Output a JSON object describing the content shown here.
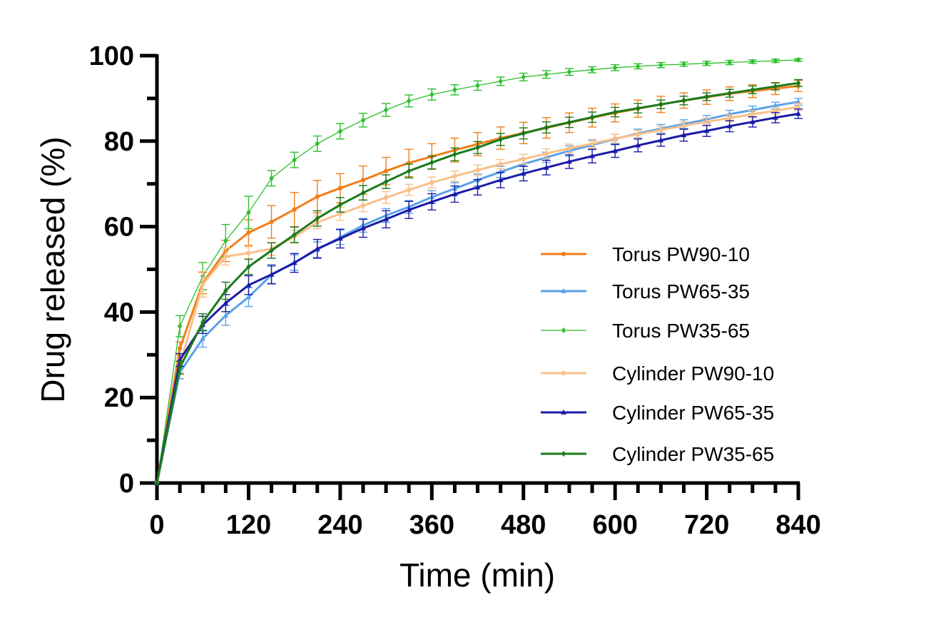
{
  "chart_data": {
    "type": "line",
    "title": "",
    "xlabel": "Time (min)",
    "ylabel": "Drug released (%)",
    "xlim": [
      0,
      840
    ],
    "ylim": [
      0,
      100
    ],
    "xticks": [
      0,
      120,
      240,
      360,
      480,
      600,
      720,
      840
    ],
    "yticks": [
      0,
      20,
      40,
      60,
      80,
      100
    ],
    "grid": false,
    "legend_position": "bottom-right",
    "x": [
      0,
      30,
      60,
      90,
      120,
      150,
      180,
      210,
      240,
      270,
      300,
      330,
      360,
      390,
      420,
      450,
      480,
      510,
      540,
      570,
      600,
      630,
      660,
      690,
      720,
      750,
      780,
      810,
      840
    ],
    "series": [
      {
        "name": "Torus PW90-10",
        "color": "#f07f1a",
        "marker": "circle",
        "line_width": 3,
        "values": [
          0,
          31.5,
          46.8,
          54.3,
          58.6,
          61.1,
          64.0,
          67.0,
          69.0,
          70.9,
          73.0,
          74.9,
          76.4,
          77.9,
          79.3,
          80.7,
          81.9,
          83.1,
          84.3,
          85.5,
          86.6,
          87.6,
          88.6,
          89.5,
          90.3,
          91.1,
          91.7,
          92.3,
          92.9
        ],
        "errors": [
          0,
          1.5,
          2.5,
          2.5,
          3.0,
          3.8,
          4.0,
          3.8,
          3.4,
          3.3,
          3.2,
          3.2,
          3.0,
          2.8,
          2.7,
          2.6,
          2.5,
          2.4,
          2.3,
          2.2,
          2.1,
          2.0,
          1.9,
          1.8,
          1.7,
          1.6,
          1.5,
          1.4,
          1.3
        ]
      },
      {
        "name": "Torus PW65-35",
        "color": "#5aa2ea",
        "marker": "triangle",
        "line_width": 3,
        "values": [
          0,
          25.9,
          33.8,
          39.2,
          43.5,
          48.7,
          51.6,
          54.6,
          57.5,
          60.3,
          62.6,
          64.6,
          66.9,
          68.9,
          70.9,
          72.8,
          74.6,
          76.2,
          77.7,
          79.1,
          80.5,
          81.8,
          82.9,
          84.0,
          85.1,
          86.3,
          87.3,
          88.3,
          89.2
        ],
        "errors": [
          0,
          1.5,
          2.0,
          2.3,
          2.2,
          2.0,
          1.8,
          1.8,
          1.7,
          1.6,
          1.6,
          1.5,
          1.5,
          1.4,
          1.4,
          1.3,
          1.3,
          1.2,
          1.2,
          1.1,
          1.1,
          1.0,
          1.0,
          1.0,
          0.9,
          0.9,
          0.9,
          0.8,
          0.8
        ]
      },
      {
        "name": "Torus PW35-65",
        "color": "#2dbf2d",
        "marker": "diamond",
        "line_width": 1.3,
        "values": [
          0,
          36.7,
          48.4,
          56.7,
          63.3,
          71.3,
          75.6,
          79.4,
          82.3,
          84.9,
          87.3,
          89.4,
          90.9,
          92.0,
          93.0,
          94.0,
          95.0,
          95.6,
          96.2,
          96.7,
          97.2,
          97.5,
          97.8,
          98.0,
          98.2,
          98.4,
          98.6,
          98.8,
          99.0
        ],
        "errors": [
          0,
          2.5,
          3.2,
          3.8,
          3.8,
          1.8,
          1.8,
          1.8,
          1.8,
          1.6,
          1.5,
          1.4,
          1.3,
          1.2,
          1.1,
          1.0,
          0.9,
          0.9,
          0.8,
          0.7,
          0.7,
          0.6,
          0.6,
          0.5,
          0.5,
          0.5,
          0.4,
          0.4,
          0.3
        ]
      },
      {
        "name": "Cylinder PW90-10",
        "color": "#f9c089",
        "marker": "circle",
        "line_width": 3,
        "values": [
          0,
          27.5,
          46.5,
          53.0,
          53.8,
          54.8,
          57.6,
          61.0,
          63.0,
          64.9,
          66.8,
          68.6,
          70.3,
          71.8,
          73.2,
          74.6,
          75.8,
          77.1,
          78.3,
          79.4,
          80.6,
          81.6,
          82.6,
          83.6,
          84.5,
          85.4,
          86.3,
          87.1,
          88.0
        ],
        "errors": [
          0,
          1.5,
          3.0,
          2.0,
          1.5,
          1.5,
          1.5,
          1.5,
          1.5,
          1.4,
          1.4,
          1.3,
          1.3,
          1.2,
          1.2,
          1.1,
          1.1,
          1.1,
          1.0,
          1.0,
          1.0,
          0.9,
          0.9,
          0.9,
          0.9,
          0.8,
          0.8,
          0.8,
          0.8
        ]
      },
      {
        "name": "Cylinder PW65-35",
        "color": "#1a1aa8",
        "marker": "triangle",
        "line_width": 3,
        "values": [
          0,
          28.8,
          37.0,
          42.1,
          46.3,
          48.8,
          51.5,
          54.8,
          57.2,
          59.6,
          61.7,
          63.9,
          65.8,
          67.6,
          69.2,
          70.9,
          72.4,
          73.8,
          75.2,
          76.5,
          77.7,
          79.0,
          80.2,
          81.4,
          82.4,
          83.5,
          84.5,
          85.5,
          86.4
        ],
        "errors": [
          0,
          1.5,
          2.0,
          2.0,
          2.2,
          2.2,
          2.2,
          2.2,
          2.2,
          2.1,
          2.0,
          2.0,
          1.9,
          1.9,
          1.8,
          1.8,
          1.7,
          1.7,
          1.6,
          1.6,
          1.5,
          1.5,
          1.4,
          1.4,
          1.3,
          1.3,
          1.2,
          1.2,
          1.1
        ]
      },
      {
        "name": "Cylinder PW35-65",
        "color": "#1a7a1a",
        "marker": "diamond",
        "line_width": 3,
        "values": [
          0,
          27.0,
          37.6,
          45.0,
          50.6,
          54.4,
          58.1,
          61.9,
          65.1,
          67.9,
          70.5,
          73.0,
          75.0,
          76.9,
          78.5,
          80.4,
          81.8,
          83.2,
          84.4,
          85.6,
          86.8,
          87.7,
          88.6,
          89.5,
          90.4,
          91.2,
          92.0,
          92.8,
          93.6
        ],
        "errors": [
          0,
          1.5,
          2.0,
          2.0,
          1.8,
          1.8,
          1.8,
          1.8,
          1.7,
          1.7,
          1.6,
          1.6,
          1.5,
          1.5,
          1.4,
          1.4,
          1.3,
          1.3,
          1.2,
          1.2,
          1.1,
          1.1,
          1.0,
          1.0,
          0.9,
          0.9,
          0.9,
          0.8,
          0.8
        ]
      }
    ]
  }
}
